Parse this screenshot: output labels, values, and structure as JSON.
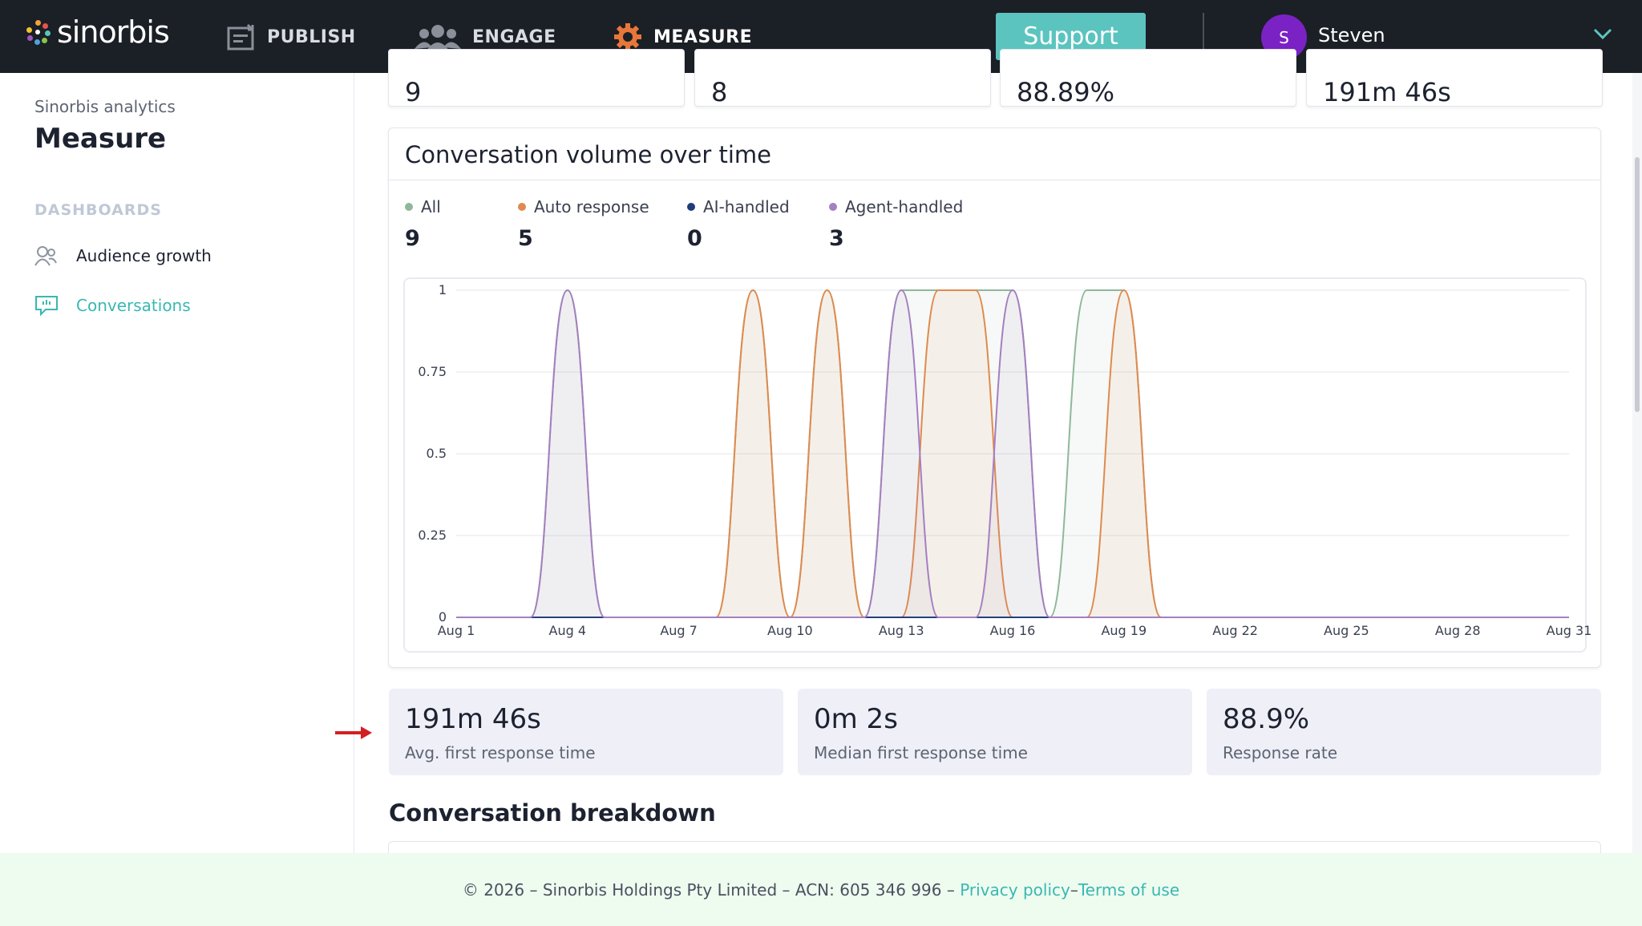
{
  "brand": {
    "name": "sinorbis"
  },
  "nav": {
    "items": [
      {
        "label": "PUBLISH",
        "icon": "publish-icon"
      },
      {
        "label": "ENGAGE",
        "icon": "people-icon"
      },
      {
        "label": "MEASURE",
        "icon": "gear-icon",
        "active": true
      }
    ],
    "support_label": "Support",
    "user": {
      "initial": "S",
      "name": "Steven"
    }
  },
  "sidebar": {
    "subtitle": "Sinorbis analytics",
    "title": "Measure",
    "section_label": "DASHBOARDS",
    "items": [
      {
        "label": "Audience growth",
        "icon": "audience-icon"
      },
      {
        "label": "Conversations",
        "icon": "chat-icon",
        "active": true
      }
    ]
  },
  "kpis_top": [
    "9",
    "8",
    "88.89%",
    "191m 46s"
  ],
  "chart": {
    "title": "Conversation volume over time",
    "legend": [
      {
        "label": "All",
        "count": "9",
        "color": "#8fb89a"
      },
      {
        "label": "Auto response",
        "count": "5",
        "color": "#e08a4f"
      },
      {
        "label": "AI-handled",
        "count": "0",
        "color": "#1f3d7a"
      },
      {
        "label": "Agent-handled",
        "count": "3",
        "color": "#a57fc0"
      }
    ]
  },
  "chart_data": {
    "type": "area",
    "x": [
      "Aug 1",
      "Aug 2",
      "Aug 3",
      "Aug 4",
      "Aug 5",
      "Aug 6",
      "Aug 7",
      "Aug 8",
      "Aug 9",
      "Aug 10",
      "Aug 11",
      "Aug 12",
      "Aug 13",
      "Aug 14",
      "Aug 15",
      "Aug 16",
      "Aug 17",
      "Aug 18",
      "Aug 19",
      "Aug 20",
      "Aug 21",
      "Aug 22",
      "Aug 23",
      "Aug 24",
      "Aug 25",
      "Aug 26",
      "Aug 27",
      "Aug 28",
      "Aug 29",
      "Aug 30",
      "Aug 31"
    ],
    "x_tick_labels": [
      "Aug 1",
      "Aug 4",
      "Aug 7",
      "Aug 10",
      "Aug 13",
      "Aug 16",
      "Aug 19",
      "Aug 22",
      "Aug 25",
      "Aug 28",
      "Aug 31"
    ],
    "y_tick_labels": [
      "0",
      "0.25",
      "0.5",
      "0.75",
      "1"
    ],
    "ylim": [
      0,
      1
    ],
    "series": [
      {
        "name": "All",
        "color": "#8fb89a",
        "values": [
          0,
          0,
          0,
          1,
          0,
          0,
          0,
          0,
          1,
          0,
          1,
          0,
          1,
          1,
          1,
          1,
          0,
          1,
          1,
          0,
          0,
          0,
          0,
          0,
          0,
          0,
          0,
          0,
          0,
          0,
          0
        ]
      },
      {
        "name": "Auto response",
        "color": "#e08a4f",
        "values": [
          0,
          0,
          0,
          0,
          0,
          0,
          0,
          0,
          1,
          0,
          1,
          0,
          0,
          1,
          1,
          0,
          0,
          0,
          1,
          0,
          0,
          0,
          0,
          0,
          0,
          0,
          0,
          0,
          0,
          0,
          0
        ]
      },
      {
        "name": "AI-handled",
        "color": "#1f3d7a",
        "values": [
          0,
          0,
          0,
          0,
          0,
          0,
          0,
          0,
          0,
          0,
          0,
          0,
          0,
          0,
          0,
          0,
          0,
          0,
          0,
          0,
          0,
          0,
          0,
          0,
          0,
          0,
          0,
          0,
          0,
          0,
          0
        ]
      },
      {
        "name": "Agent-handled",
        "color": "#a57fc0",
        "values": [
          0,
          0,
          0,
          1,
          0,
          0,
          0,
          0,
          0,
          0,
          0,
          0,
          1,
          0,
          0,
          1,
          0,
          0,
          0,
          0,
          0,
          0,
          0,
          0,
          0,
          0,
          0,
          0,
          0,
          0,
          0
        ]
      }
    ],
    "grid": true
  },
  "stats": [
    {
      "value": "191m 46s",
      "label": "Avg. first response time"
    },
    {
      "value": "0m 2s",
      "label": "Median first response time"
    },
    {
      "value": "88.9%",
      "label": "Response rate"
    }
  ],
  "breakdown_title": "Conversation breakdown",
  "footer": {
    "text": "© 2026 – Sinorbis Holdings Pty Limited – ACN: 605 346 996 – ",
    "privacy": "Privacy policy",
    "separator": " – ",
    "terms": "Terms of use"
  }
}
